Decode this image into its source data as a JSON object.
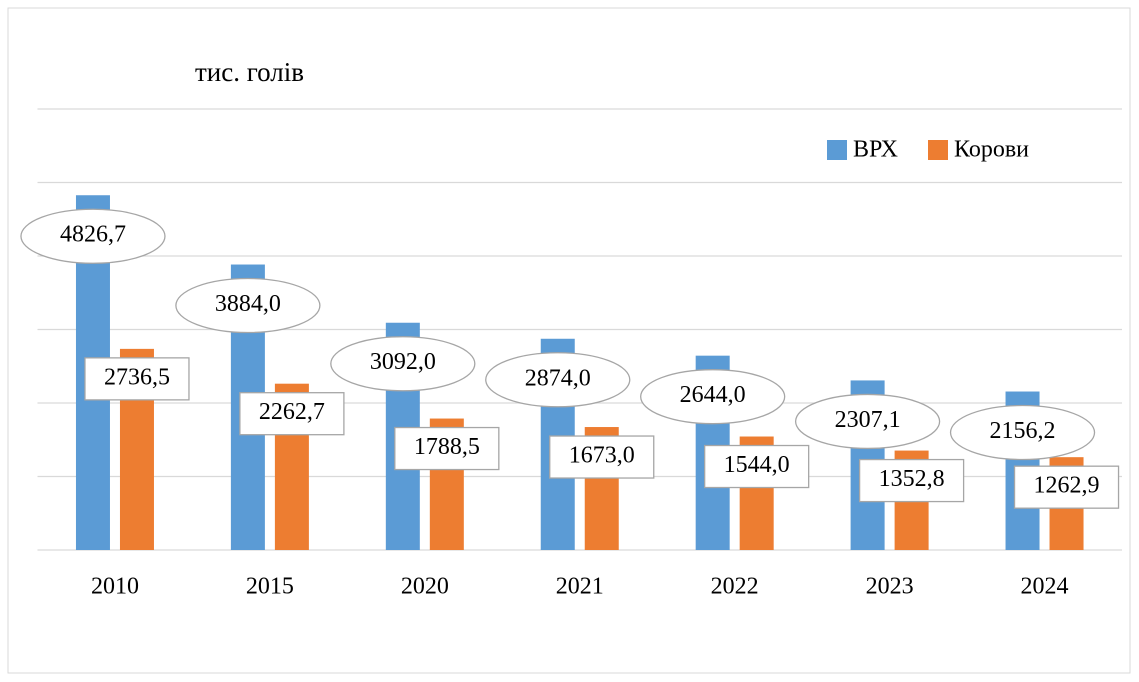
{
  "chart_data": {
    "type": "bar",
    "title": "тис. голів",
    "categories": [
      "2010",
      "2015",
      "2020",
      "2021",
      "2022",
      "2023",
      "2024"
    ],
    "series": [
      {
        "name": "ВРХ",
        "color": "#5b9bd5",
        "values": [
          4826.7,
          3884.0,
          3092.0,
          2874.0,
          2644.0,
          2307.1,
          2156.2
        ],
        "value_labels": [
          "4826,7",
          "3884,0",
          "3092,0",
          "2874,0",
          "2644,0",
          "2307,1",
          "2156,2"
        ]
      },
      {
        "name": "Корови",
        "color": "#ed7d31",
        "values": [
          2736.5,
          2262.7,
          1788.5,
          1673.0,
          1544.0,
          1352.8,
          1262.9
        ],
        "value_labels": [
          "2736,5",
          "2262,7",
          "1788,5",
          "1673,0",
          "1544,0",
          "1352,8",
          "1262,9"
        ]
      }
    ],
    "ylim": [
      0,
      6000
    ],
    "yticks": [
      0,
      1000,
      2000,
      3000,
      4000,
      5000,
      6000
    ],
    "grid": true,
    "legend": "top-right"
  }
}
